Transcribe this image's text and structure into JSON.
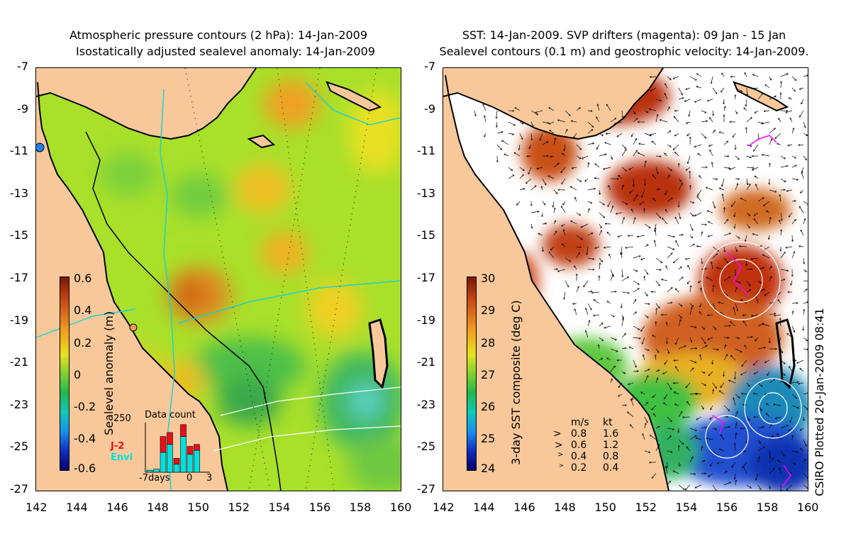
{
  "left_panel": {
    "title_line1": "Atmospheric pressure contours (2 hPa): 14-Jan-2009",
    "title_line2": "Isostatically adjusted sealevel anomaly: 14-Jan-2009",
    "colorbar": {
      "label": "Sealevel anomaly (m)",
      "ticks": [
        "0.6",
        "0.4",
        "0.2",
        "0",
        "-0.2",
        "-0.4",
        "-0.6"
      ]
    },
    "inset": {
      "title": "Data count",
      "ymax_label": "250",
      "legend": [
        {
          "label": "J-2",
          "color": "#e8101a"
        },
        {
          "label": "Envi",
          "color": "#00e0e0"
        }
      ],
      "x_labels": [
        "-7days",
        "0",
        "3"
      ],
      "bars": [
        {
          "day": -7,
          "j2": 0,
          "envi": 10
        },
        {
          "day": -6,
          "j2": 0,
          "envi": 15
        },
        {
          "day": -5,
          "j2": 80,
          "envi": 100
        },
        {
          "day": -4,
          "j2": 60,
          "envi": 140
        },
        {
          "day": -3,
          "j2": 30,
          "envi": 40
        },
        {
          "day": -2,
          "j2": 60,
          "envi": 180
        },
        {
          "day": -1,
          "j2": 40,
          "envi": 90
        },
        {
          "day": 0,
          "j2": 30,
          "envi": 110
        }
      ]
    }
  },
  "right_panel": {
    "title_line1": "SST: 14-Jan-2009. SVP drifters (magenta): 09 Jan - 15 Jan",
    "title_line2": "Sealevel contours (0.1 m) and geostrophic velocity: 14-Jan-2009.",
    "colorbar": {
      "label": "3-day SST composite (deg C)",
      "ticks": [
        "30",
        "29",
        "28",
        "27",
        "26",
        "25",
        "24"
      ]
    },
    "velocity_legend": {
      "header_ms": "m/s",
      "header_kt": "kt",
      "rows": [
        {
          "ms": "0.8",
          "kt": "1.6"
        },
        {
          "ms": "0.6",
          "kt": "1.2"
        },
        {
          "ms": "0.4",
          "kt": "0.8"
        },
        {
          "ms": "0.2",
          "kt": "0.4"
        }
      ]
    }
  },
  "axes": {
    "lat_labels": [
      "-7",
      "-9",
      "-11",
      "-13",
      "-15",
      "-17",
      "-19",
      "-21",
      "-23",
      "-25",
      "-27"
    ],
    "lon_labels": [
      "142",
      "144",
      "146",
      "148",
      "150",
      "152",
      "154",
      "156",
      "158",
      "160"
    ]
  },
  "credit": "CSIRO Plotted 20-Jan-2009 08:41",
  "colors": {
    "land": "#f8c89a",
    "sea_mid": "#9ee020",
    "sst_warm": "#b02000",
    "sst_cool": "#1040e0",
    "drifter": "#ff00ff"
  }
}
